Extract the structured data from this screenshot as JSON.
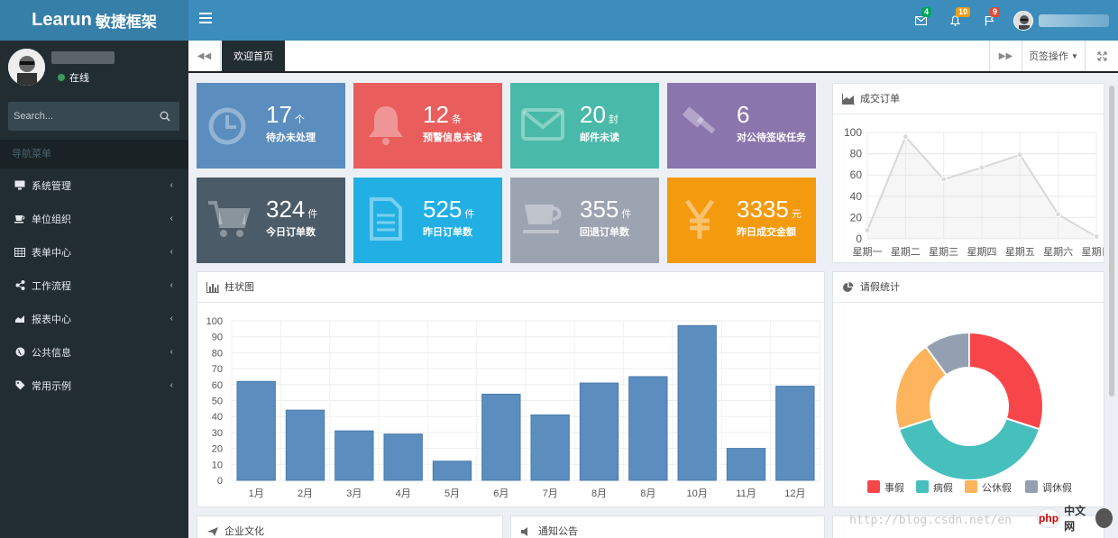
{
  "app": {
    "brand_latin": "Learun",
    "brand_cn": "敏捷框架"
  },
  "topbar": {
    "notifications": [
      {
        "icon": "envelope-icon",
        "count": "4",
        "color": "#00a65a"
      },
      {
        "icon": "bell-icon",
        "count": "10",
        "color": "#f39c12"
      },
      {
        "icon": "flag-icon",
        "count": "9",
        "color": "#dd4b39"
      }
    ]
  },
  "sidebar": {
    "status": "在线",
    "search_placeholder": "Search...",
    "nav_header": "导航菜单",
    "items": [
      {
        "label": "系统管理",
        "icon": "desktop-icon"
      },
      {
        "label": "单位组织",
        "icon": "coffee-icon"
      },
      {
        "label": "表单中心",
        "icon": "table-icon"
      },
      {
        "label": "工作流程",
        "icon": "share-icon"
      },
      {
        "label": "报表中心",
        "icon": "area-chart-icon"
      },
      {
        "label": "公共信息",
        "icon": "globe-icon"
      },
      {
        "label": "常用示例",
        "icon": "tag-icon"
      }
    ]
  },
  "tabs": {
    "active": "欢迎首页",
    "ops": "页签操作"
  },
  "tiles": [
    {
      "num": "17",
      "unit": "个",
      "label": "待办未处理",
      "icon": "clock-icon",
      "color": "#5b8dbe"
    },
    {
      "num": "12",
      "unit": "条",
      "label": "预警信息未读",
      "icon": "bell-icon",
      "color": "#e95d5d"
    },
    {
      "num": "20",
      "unit": "封",
      "label": "邮件未读",
      "icon": "envelope-icon",
      "color": "#49b9a9"
    },
    {
      "num": "6",
      "unit": "",
      "label": "对公待签收任务",
      "icon": "gavel-icon",
      "color": "#8b75ad"
    },
    {
      "num": "324",
      "unit": "件",
      "label": "今日订单数",
      "icon": "cart-icon",
      "color": "#4b5b67"
    },
    {
      "num": "525",
      "unit": "件",
      "label": "昨日订单数",
      "icon": "file-icon",
      "color": "#22b0e4"
    },
    {
      "num": "355",
      "unit": "件",
      "label": "回退订单数",
      "icon": "cup-icon",
      "color": "#9ca3b1"
    },
    {
      "num": "3335",
      "unit": "元",
      "label": "昨日成交金额",
      "icon": "yen-icon",
      "color": "#f49a0e"
    }
  ],
  "panels": {
    "orders": "成交订单",
    "bar": "柱状图",
    "leave": "请假统计",
    "bottom1": "企业文化",
    "bottom2": "通知公告"
  },
  "watermark": "http://blog.csdn.net/en",
  "logo": {
    "php": "php",
    "cn": "中文网"
  },
  "chart_data": [
    {
      "type": "area",
      "title": "成交订单",
      "categories": [
        "星期一",
        "星期二",
        "星期三",
        "星期四",
        "星期五",
        "星期六",
        "星期日"
      ],
      "values": [
        8,
        96,
        56,
        67,
        79,
        23,
        2
      ],
      "ylim": [
        0,
        100
      ],
      "yticks": [
        0,
        20,
        40,
        60,
        80,
        100
      ],
      "grid": true
    },
    {
      "type": "bar",
      "title": "柱状图",
      "categories": [
        "1月",
        "2月",
        "3月",
        "4月",
        "5月",
        "6月",
        "7月",
        "8月",
        "8月",
        "10月",
        "11月",
        "12月"
      ],
      "values": [
        62,
        44,
        31,
        29,
        12,
        54,
        41,
        61,
        65,
        97,
        20,
        59
      ],
      "ylim": [
        0,
        100
      ],
      "yticks": [
        0,
        10,
        20,
        30,
        40,
        50,
        60,
        70,
        80,
        90,
        100
      ],
      "color": "#5b8dbe",
      "grid": true
    },
    {
      "type": "pie",
      "title": "请假统计",
      "series": [
        {
          "name": "事假",
          "value": 30,
          "color": "#f7464a"
        },
        {
          "name": "病假",
          "value": 40,
          "color": "#46bfbd"
        },
        {
          "name": "公休假",
          "value": 20,
          "color": "#fdb45c"
        },
        {
          "name": "调休假",
          "value": 10,
          "color": "#949fb1"
        }
      ],
      "legend": "bottom"
    }
  ]
}
